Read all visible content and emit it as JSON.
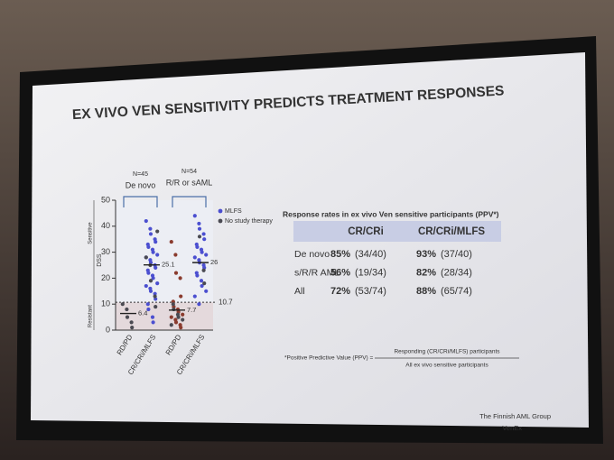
{
  "slide_title": "EX VIVO VEN SENSITIVITY PREDICTS TREATMENT RESPONSES",
  "chart_data": {
    "type": "dot",
    "ylabel": "DSS",
    "ylim": [
      0,
      50
    ],
    "yticks": [
      0,
      10,
      20,
      30,
      40,
      50
    ],
    "zone_labels": [
      "Sensitive",
      "Resistant"
    ],
    "threshold": 10.7,
    "groups": [
      {
        "n": "N=45",
        "name": "De novo"
      },
      {
        "n": "N=54",
        "name": "R/R or sAML"
      }
    ],
    "categories": [
      "RD/PD",
      "CR/CRi/MLFS",
      "RD/PD",
      "CR/CRi/MLFS"
    ],
    "medians": [
      6.4,
      25.1,
      7.7,
      26.0
    ],
    "legend": [
      {
        "label": "MLFS",
        "color": "#4b4fd0"
      },
      {
        "label": "No study therapy",
        "color": "#4a4a52"
      }
    ],
    "columns": [
      {
        "points": [
          {
            "color": "#4a4a52",
            "values": [
              10,
              8,
              5,
              3,
              1
            ]
          }
        ]
      },
      {
        "points": [
          {
            "color": "#4b4fd0",
            "values": [
              42,
              39,
              37,
              35,
              34,
              33,
              32,
              31,
              30,
              29,
              28,
              27,
              26,
              25,
              24,
              23,
              22,
              21,
              20,
              18,
              17,
              16,
              15,
              14,
              12,
              10,
              8,
              5,
              3
            ]
          },
          {
            "color": "#4a4a52",
            "values": [
              38,
              28,
              25,
              19,
              13,
              9
            ]
          }
        ]
      },
      {
        "points": [
          {
            "color": "#8a3b2e",
            "values": [
              34,
              29,
              22,
              20,
              13,
              11,
              9,
              8,
              7,
              6,
              5,
              4,
              3,
              2,
              1
            ]
          },
          {
            "color": "#4a4a52",
            "values": [
              10,
              8,
              6,
              5,
              4,
              2
            ]
          }
        ]
      },
      {
        "points": [
          {
            "color": "#4b4fd0",
            "values": [
              44,
              41,
              39,
              37,
              35,
              33,
              32,
              31,
              30,
              29,
              28,
              27,
              26,
              25,
              24,
              22,
              21,
              19,
              17,
              15,
              13,
              10
            ]
          },
          {
            "color": "#4a4a52",
            "values": [
              36,
              23,
              18
            ]
          }
        ]
      }
    ]
  },
  "table": {
    "title": "Response rates in ex vivo Ven sensitive participants (PPV*)",
    "headers": [
      "CR/CRi",
      "CR/CRi/MLFS"
    ],
    "rows": [
      {
        "label": "De novo",
        "cells": [
          [
            "85%",
            "(34/40)"
          ],
          [
            "93%",
            "(37/40)"
          ]
        ]
      },
      {
        "label": "s/R/R AML",
        "cells": [
          [
            "56%",
            "(19/34)"
          ],
          [
            "82%",
            "(28/34)"
          ]
        ]
      },
      {
        "label": "All",
        "cells": [
          [
            "72%",
            "(53/74)"
          ],
          [
            "88%",
            "(65/74)"
          ]
        ]
      }
    ]
  },
  "footnote": {
    "lead": "*Positive Predictive Value (PPV) =",
    "numerator": "Responding (CR/CRi/MLFS) participants",
    "denominator": "All ex vivo sensitive participants"
  },
  "footer": [
    "The Finnish AML Group",
    "VenEx"
  ]
}
